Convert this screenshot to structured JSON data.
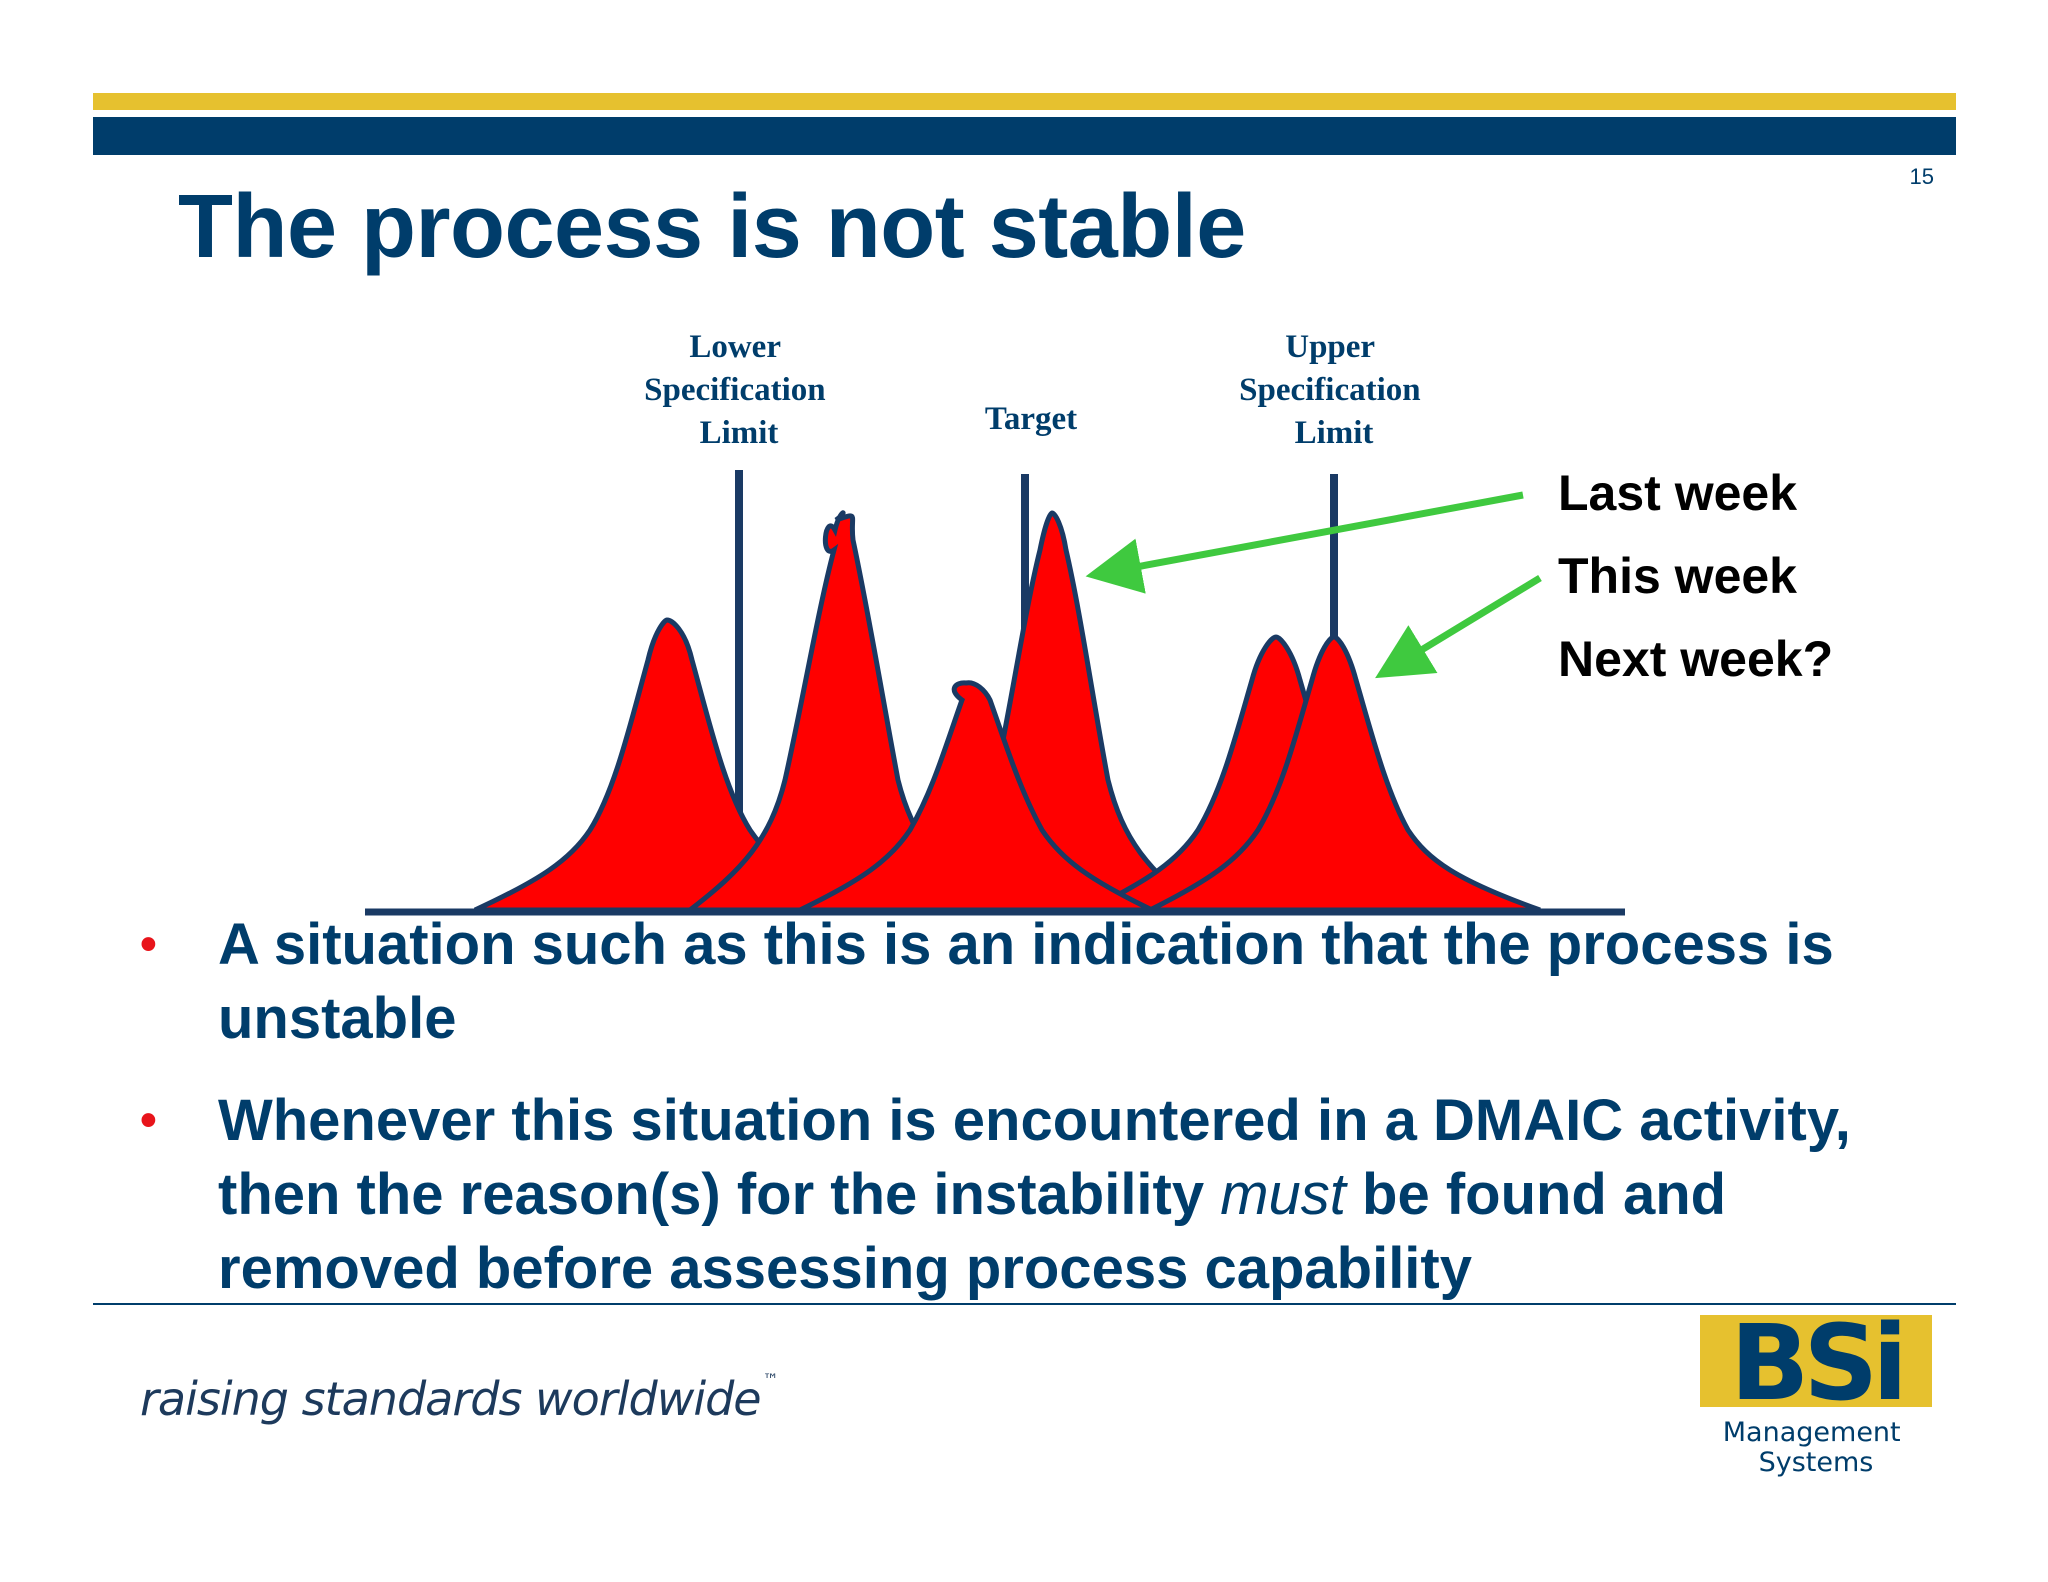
{
  "slide": {
    "number": "15",
    "title": "The process is not stable"
  },
  "diagram": {
    "spec_labels": {
      "lower": [
        "Lower",
        "Specification",
        "Limit"
      ],
      "target": "Target",
      "upper": [
        "Upper",
        "Specification",
        "Limit"
      ]
    },
    "legend": [
      "Last week",
      "This week",
      "Next week?"
    ],
    "colors": {
      "curve_fill": "#ff0000",
      "curve_outline": "#1a3a64",
      "arrow": "#3fc93f",
      "navy": "#003d6b",
      "gold": "#e6c12f"
    }
  },
  "bullets": [
    {
      "text": "A situation such as this is an indication that the process is unstable"
    },
    {
      "before": "Whenever this situation is encountered in a DMAIC activity, then the reason(s) for the instability ",
      "emphasis": "must",
      "after": " be found and removed before assessing process capability"
    }
  ],
  "footer": {
    "tagline": "raising standards worldwide",
    "trademark": "™",
    "logo_text": "BSi",
    "logo_caption": [
      "Management",
      "Systems"
    ]
  }
}
